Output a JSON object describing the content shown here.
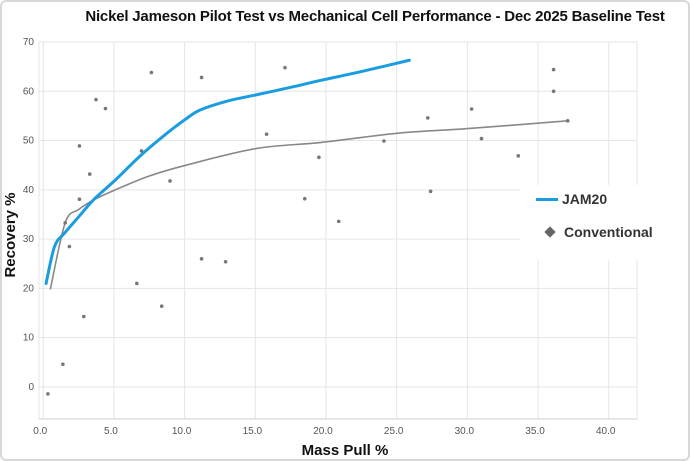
{
  "chart_data": {
    "type": "scatter",
    "title": "Nickel Jameson Pilot Test vs Mechanical Cell Performance - Dec 2025 Baseline Test",
    "xlabel": "Mass Pull %",
    "ylabel": "Recovery %",
    "xlim": [
      -0.3,
      42
    ],
    "ylim": [
      -6.5,
      70
    ],
    "grid": true,
    "legend_position": "right",
    "x_ticks": [
      "0.0",
      "5.0",
      "10.0",
      "15.0",
      "20.0",
      "25.0",
      "30.0",
      "35.0",
      "40.0"
    ],
    "x_tick_values": [
      0,
      5,
      10,
      15,
      20,
      25,
      30,
      35,
      40
    ],
    "y_ticks": [
      "0",
      "10",
      "20",
      "30",
      "40",
      "50",
      "60",
      "70"
    ],
    "y_tick_values": [
      0,
      10,
      20,
      30,
      40,
      50,
      60,
      70
    ],
    "series": [
      {
        "name": "JAM20",
        "kind": "line",
        "color": "#1a9de0",
        "x": [
          0.2,
          0.8,
          1.5,
          2.5,
          3.6,
          5.1,
          6.9,
          8.8,
          10.1,
          11.1,
          13.0,
          15.1,
          17.5,
          19.6,
          22.5,
          25.9
        ],
        "y": [
          21.0,
          28.5,
          31.2,
          34.5,
          38.1,
          42.0,
          47.0,
          51.6,
          54.4,
          56.2,
          58.0,
          59.3,
          60.8,
          62.2,
          64.0,
          66.3
        ]
      },
      {
        "name": "Conventional",
        "kind": "scatter",
        "color": "#777777",
        "x": [
          0.33,
          1.39,
          1.55,
          1.85,
          2.56,
          2.56,
          2.87,
          3.29,
          3.73,
          4.4,
          6.62,
          6.95,
          7.65,
          8.38,
          8.97,
          11.2,
          11.2,
          12.9,
          15.8,
          17.1,
          18.5,
          19.5,
          20.9,
          24.1,
          27.2,
          27.4,
          30.3,
          31.0,
          33.6,
          36.1,
          36.1,
          37.1
        ],
        "y": [
          -1.4,
          4.6,
          33.3,
          28.5,
          48.9,
          38.1,
          14.3,
          43.2,
          58.3,
          56.5,
          21.0,
          47.9,
          63.8,
          16.4,
          41.8,
          62.8,
          26.0,
          25.4,
          51.3,
          64.8,
          38.2,
          46.6,
          33.6,
          49.9,
          54.6,
          39.7,
          56.4,
          50.4,
          46.9,
          60.0,
          64.4,
          54.0
        ]
      },
      {
        "name": "Conventional trend",
        "kind": "line",
        "color": "#888888",
        "x": [
          0.5,
          1.55,
          2.5,
          3.6,
          5.1,
          7.5,
          10.1,
          15.1,
          19.6,
          25.1,
          29.9,
          37.1
        ],
        "y": [
          19.8,
          33.3,
          36.0,
          38.0,
          40.0,
          42.8,
          45.0,
          48.4,
          49.6,
          51.5,
          52.4,
          54.0
        ]
      }
    ]
  }
}
